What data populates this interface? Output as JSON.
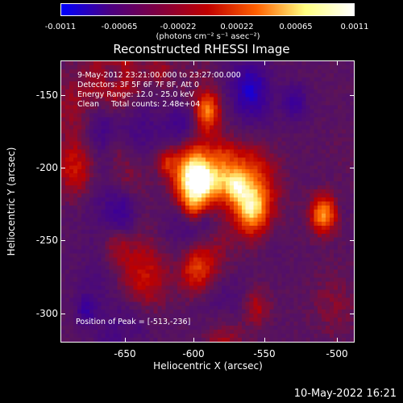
{
  "colorbar": {
    "ticks": [
      "-0.0011",
      "-0.00065",
      "-0.00022",
      "0.00022",
      "0.00065",
      "0.0011"
    ],
    "units": "(photons cm⁻² s⁻¹ asec⁻²)",
    "colors": [
      "#0000ff",
      "#4b0082",
      "#800040",
      "#c00000",
      "#ff6000",
      "#ffff80",
      "#ffffff"
    ]
  },
  "title": "Reconstructed RHESSI Image",
  "info": {
    "time_range": "9-May-2012 23:21:00.000 to 23:27:00.000",
    "detectors": "Detectors: 3F 5F 6F 7F 8F, Att 0",
    "energy": "Energy Range: 12.0 - 25.0 keV",
    "clean": "Clean     Total counts: 2.48e+04"
  },
  "peak": "Position of Peak = [-513,-236]",
  "axes": {
    "xlabel": "Heliocentric X (arcsec)",
    "ylabel": "Heliocentric Y (arcsec)",
    "xticks": [
      "-650",
      "-600",
      "-550",
      "-500"
    ],
    "yticks": [
      "-150",
      "-200",
      "-250",
      "-300"
    ]
  },
  "timestamp": "10-May-2022 16:21"
}
